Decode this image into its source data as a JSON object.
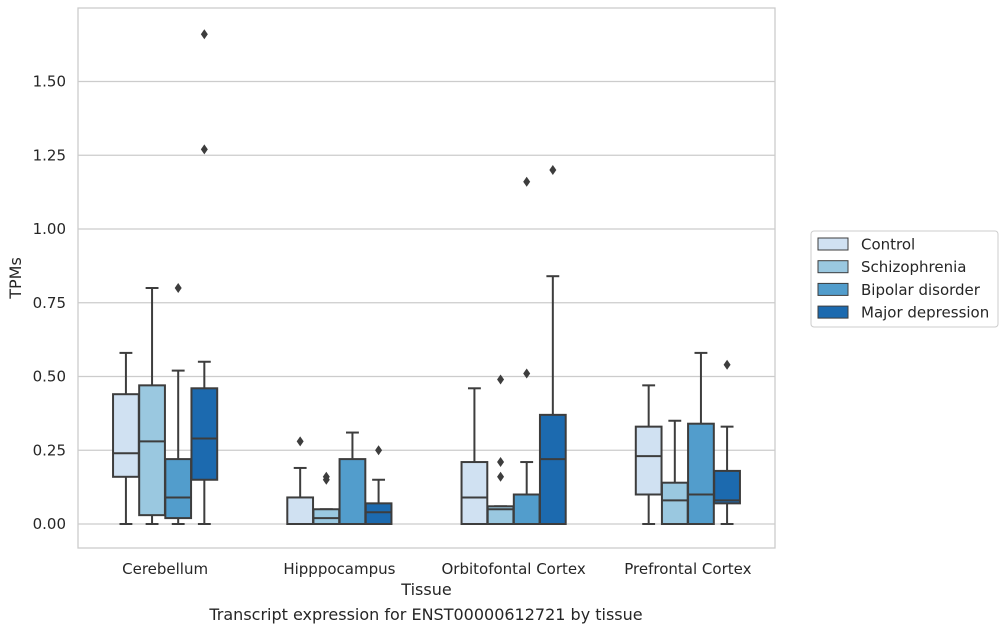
{
  "caption": "Transcript expression for ENST00000612721 by tissue",
  "chart_data": {
    "type": "box",
    "xlabel": "Tissue",
    "ylabel": "TPMs",
    "categories": [
      "Cerebellum",
      "Hipppocampus",
      "Orbitofontal Cortex",
      "Prefrontal Cortex"
    ],
    "yticks": [
      "0.00",
      "0.25",
      "0.50",
      "0.75",
      "1.00",
      "1.25",
      "1.50"
    ],
    "ylim": [
      -0.08,
      1.74
    ],
    "grid": "horizontal",
    "legend_position": "right",
    "series": [
      {
        "name": "Control",
        "color": "#d0e1f2",
        "boxes": [
          {
            "whislo": 0.0,
            "q1": 0.16,
            "med": 0.24,
            "q3": 0.44,
            "whishi": 0.58,
            "fliers": []
          },
          {
            "whislo": 0.0,
            "q1": 0.0,
            "med": 0.0,
            "q3": 0.09,
            "whishi": 0.19,
            "fliers": [
              0.28
            ]
          },
          {
            "whislo": 0.0,
            "q1": 0.0,
            "med": 0.09,
            "q3": 0.21,
            "whishi": 0.46,
            "fliers": []
          },
          {
            "whislo": 0.0,
            "q1": 0.1,
            "med": 0.23,
            "q3": 0.33,
            "whishi": 0.47,
            "fliers": []
          }
        ]
      },
      {
        "name": "Schizophrenia",
        "color": "#9ac8e0",
        "boxes": [
          {
            "whislo": 0.0,
            "q1": 0.03,
            "med": 0.28,
            "q3": 0.47,
            "whishi": 0.8,
            "fliers": []
          },
          {
            "whislo": 0.0,
            "q1": 0.0,
            "med": 0.02,
            "q3": 0.05,
            "whishi": 0.05,
            "fliers": [
              0.15,
              0.16
            ]
          },
          {
            "whislo": 0.0,
            "q1": 0.0,
            "med": 0.05,
            "q3": 0.06,
            "whishi": 0.06,
            "fliers": [
              0.16,
              0.21,
              0.49
            ]
          },
          {
            "whislo": 0.0,
            "q1": 0.0,
            "med": 0.08,
            "q3": 0.14,
            "whishi": 0.35,
            "fliers": []
          }
        ]
      },
      {
        "name": "Bipolar disorder",
        "color": "#529dcc",
        "boxes": [
          {
            "whislo": 0.0,
            "q1": 0.02,
            "med": 0.09,
            "q3": 0.22,
            "whishi": 0.52,
            "fliers": [
              0.8
            ]
          },
          {
            "whislo": 0.0,
            "q1": 0.0,
            "med": 0.0,
            "q3": 0.22,
            "whishi": 0.31,
            "fliers": []
          },
          {
            "whislo": 0.0,
            "q1": 0.0,
            "med": 0.0,
            "q3": 0.1,
            "whishi": 0.21,
            "fliers": [
              0.51,
              1.16
            ]
          },
          {
            "whislo": 0.0,
            "q1": 0.0,
            "med": 0.1,
            "q3": 0.34,
            "whishi": 0.58,
            "fliers": []
          }
        ]
      },
      {
        "name": "Major depression",
        "color": "#1c6aaf",
        "boxes": [
          {
            "whislo": 0.0,
            "q1": 0.15,
            "med": 0.29,
            "q3": 0.46,
            "whishi": 0.55,
            "fliers": [
              1.27,
              1.66
            ]
          },
          {
            "whislo": 0.0,
            "q1": 0.0,
            "med": 0.04,
            "q3": 0.07,
            "whishi": 0.15,
            "fliers": [
              0.25
            ]
          },
          {
            "whislo": 0.0,
            "q1": 0.0,
            "med": 0.22,
            "q3": 0.37,
            "whishi": 0.84,
            "fliers": [
              1.2
            ]
          },
          {
            "whislo": 0.0,
            "q1": 0.07,
            "med": 0.08,
            "q3": 0.18,
            "whishi": 0.33,
            "fliers": [
              0.54
            ]
          }
        ]
      }
    ]
  }
}
